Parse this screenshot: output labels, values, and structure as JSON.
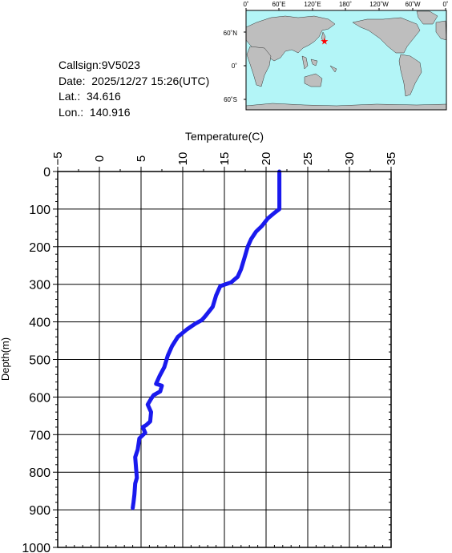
{
  "info": {
    "callsign": "Callsign:9V5023",
    "date": "Date:  2025/12/27 15:26(UTC)",
    "lat": "Lat.:  34.616",
    "lon": "Lon.:  140.916"
  },
  "map": {
    "lon_labels": [
      "0˚",
      "60˚E",
      "120˚E",
      "180˚",
      "120˚W",
      "60˚W",
      "0˚"
    ],
    "lat_labels": [
      "60˚N",
      "0˚",
      "60˚S"
    ],
    "station": {
      "lon": 140.916,
      "lat": 34.616
    },
    "colors": {
      "ocean": "#b3f5f7",
      "land": "#bebebe",
      "marker": "#ff0000"
    }
  },
  "chart_data": {
    "type": "line",
    "xlabel": "Temperature(C)",
    "ylabel": "Depth(m)",
    "xlim": [
      -5,
      35
    ],
    "ylim": [
      0,
      1000
    ],
    "y_inverted": true,
    "x_ticks": [
      -5,
      0,
      5,
      10,
      15,
      20,
      25,
      30,
      35
    ],
    "y_ticks": [
      0,
      100,
      200,
      300,
      400,
      500,
      600,
      700,
      800,
      900,
      1000
    ],
    "x_tick_labels": [
      "−5",
      "0",
      "5",
      "10",
      "15",
      "20",
      "25",
      "30",
      "35"
    ],
    "y_tick_labels": [
      "0",
      "100",
      "200",
      "300",
      "400",
      "500",
      "600",
      "700",
      "800",
      "900",
      "1000"
    ],
    "grid": true,
    "series": [
      {
        "color": "#1a1aee",
        "points": [
          [
            21.6,
            0
          ],
          [
            21.6,
            50
          ],
          [
            21.6,
            100
          ],
          [
            21.0,
            110
          ],
          [
            20.2,
            125
          ],
          [
            19.5,
            145
          ],
          [
            18.8,
            160
          ],
          [
            18.2,
            180
          ],
          [
            17.8,
            200
          ],
          [
            17.4,
            230
          ],
          [
            17.0,
            260
          ],
          [
            16.6,
            280
          ],
          [
            15.8,
            295
          ],
          [
            14.5,
            305
          ],
          [
            14.0,
            330
          ],
          [
            13.6,
            360
          ],
          [
            12.7,
            385
          ],
          [
            12.3,
            395
          ],
          [
            11.5,
            405
          ],
          [
            10.5,
            420
          ],
          [
            9.4,
            440
          ],
          [
            8.7,
            465
          ],
          [
            8.2,
            490
          ],
          [
            7.8,
            520
          ],
          [
            7.2,
            545
          ],
          [
            6.8,
            565
          ],
          [
            7.5,
            570
          ],
          [
            7.3,
            585
          ],
          [
            6.5,
            595
          ],
          [
            6.2,
            605
          ],
          [
            5.8,
            620
          ],
          [
            6.2,
            640
          ],
          [
            6.1,
            665
          ],
          [
            5.6,
            675
          ],
          [
            5.2,
            680
          ],
          [
            5.5,
            695
          ],
          [
            4.8,
            710
          ],
          [
            4.6,
            740
          ],
          [
            4.3,
            760
          ],
          [
            4.4,
            790
          ],
          [
            4.5,
            815
          ],
          [
            4.3,
            830
          ],
          [
            4.2,
            860
          ],
          [
            4.1,
            880
          ],
          [
            4.0,
            895
          ]
        ]
      }
    ]
  }
}
